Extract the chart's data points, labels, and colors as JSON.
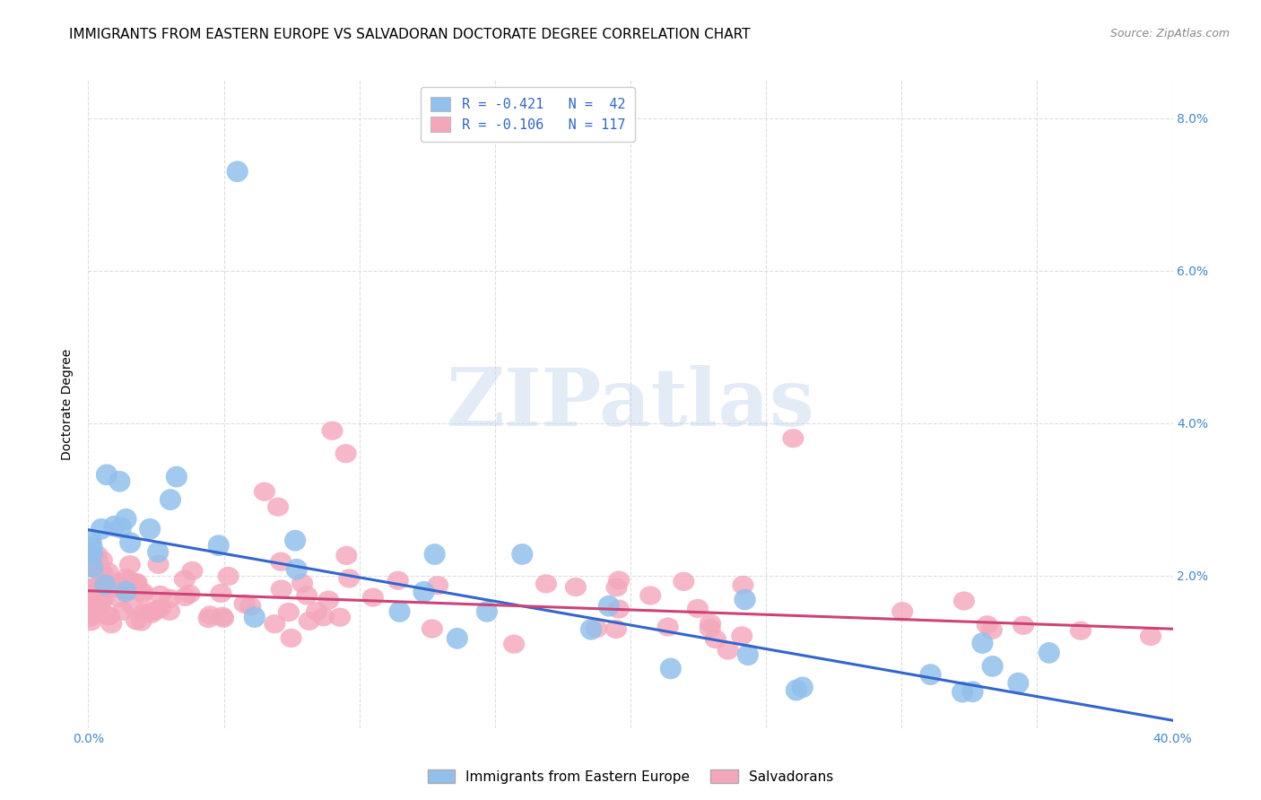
{
  "title": "IMMIGRANTS FROM EASTERN EUROPE VS SALVADORAN DOCTORATE DEGREE CORRELATION CHART",
  "source": "Source: ZipAtlas.com",
  "ylabel": "Doctorate Degree",
  "xlim": [
    0.0,
    0.4
  ],
  "ylim": [
    0.0,
    0.085
  ],
  "blue_color": "#92C0EC",
  "blue_color_edge": "#92C0EC",
  "pink_color": "#F4A7BB",
  "pink_color_edge": "#F4A7BB",
  "blue_line_color": "#3366CC",
  "pink_line_color": "#CC4477",
  "watermark_color": "#C8DAEE",
  "legend_R_blue": "R = -0.421",
  "legend_N_blue": "N =  42",
  "legend_R_pink": "R = -0.106",
  "legend_N_pink": "N = 117",
  "legend_label_blue": "Immigrants from Eastern Europe",
  "legend_label_pink": "Salvadorans",
  "grid_color": "#DDDDDD",
  "background_color": "#FFFFFF",
  "title_fontsize": 11,
  "axis_label_fontsize": 10,
  "tick_fontsize": 10,
  "tick_color": "#4488CC",
  "blue_trend_start": 0.026,
  "blue_trend_end": 0.001,
  "pink_trend_start": 0.018,
  "pink_trend_end": 0.013
}
